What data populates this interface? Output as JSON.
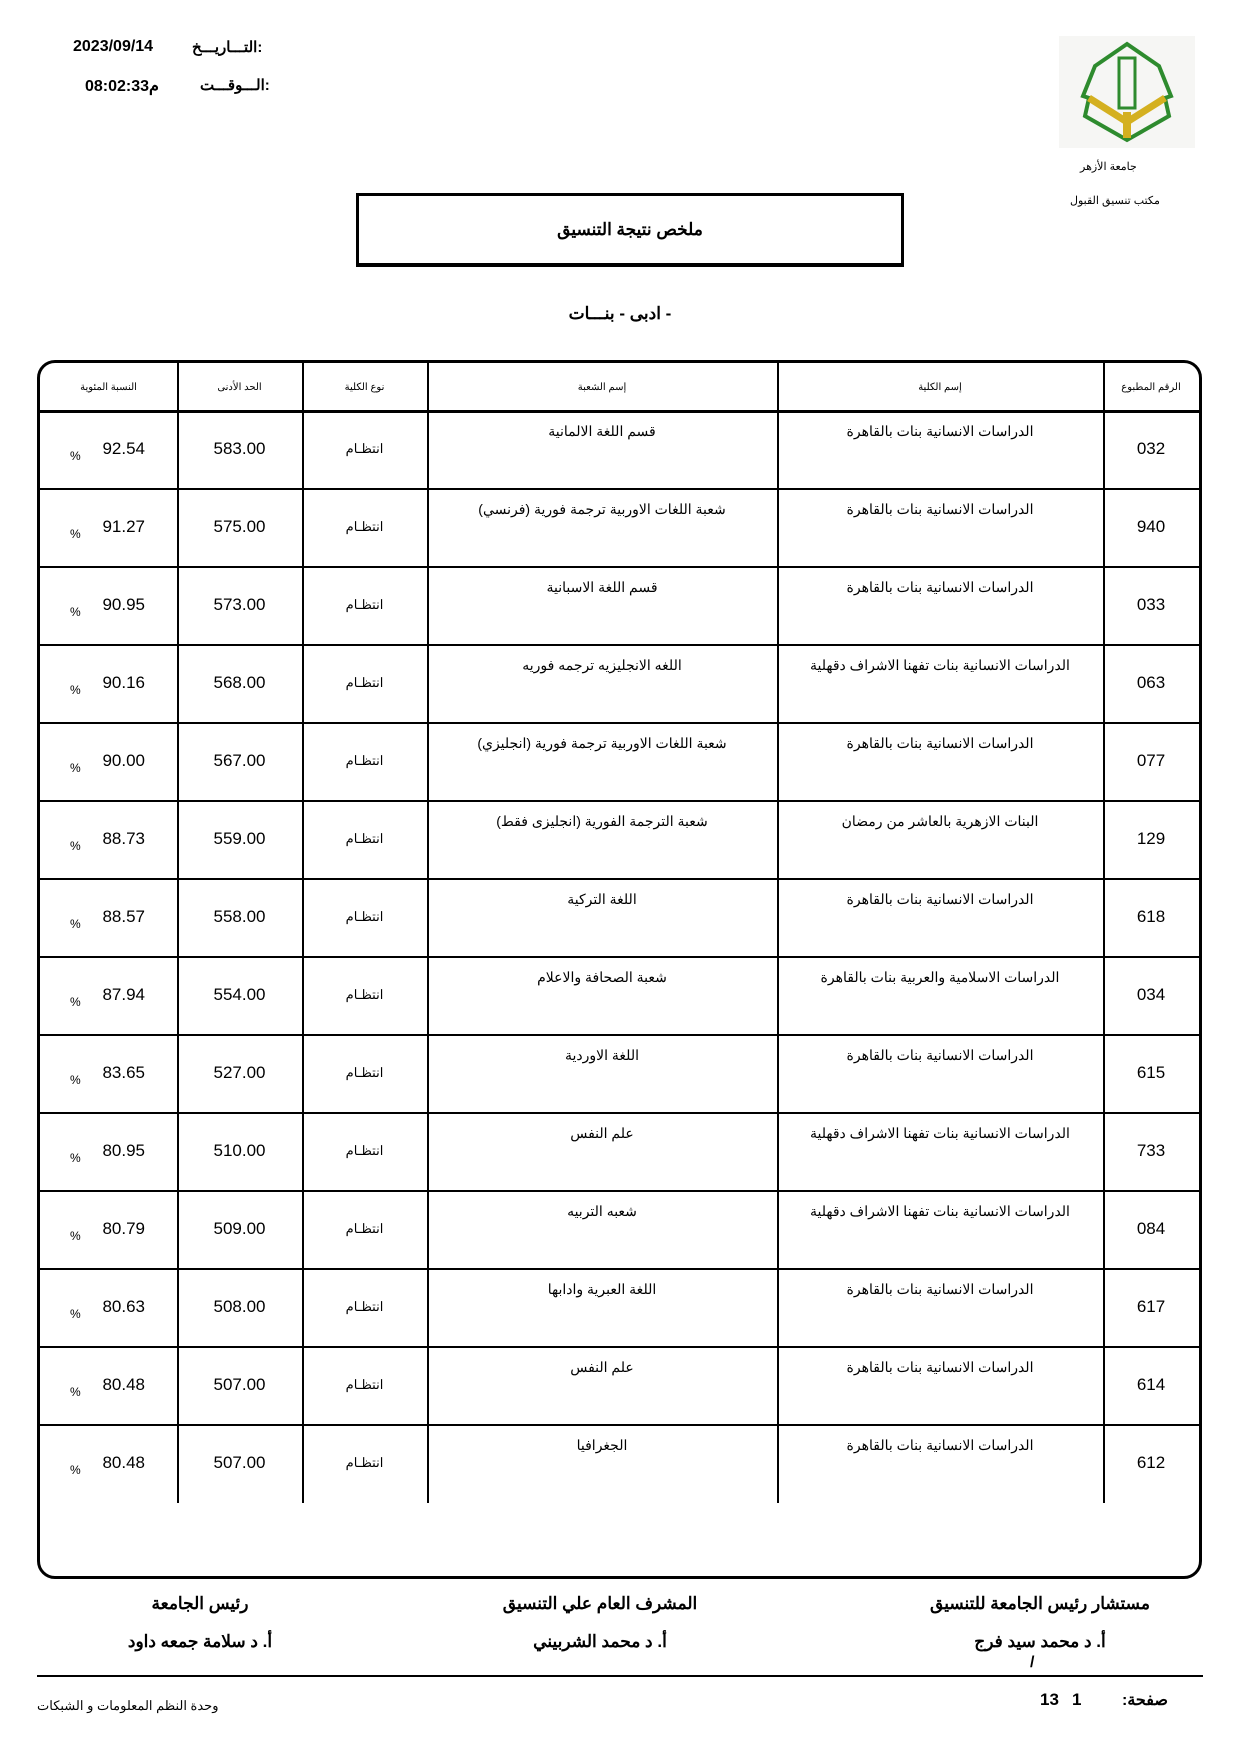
{
  "header": {
    "date_label": "التـــاريـــخ:",
    "date_value": "2023/09/14",
    "time_label": "الـــوقـــت:",
    "time_value": "08:02:33م",
    "university": "جامعة الأزهر",
    "office": "مكتب تنسيق القبول",
    "logo_text": "جامعة الأزهر",
    "logo_colors": {
      "green": "#2e8b2e",
      "gold": "#d4b020"
    }
  },
  "title": "ملخص نتيجة التنسيق",
  "subtitle": "- ادبى - بنـــات",
  "table": {
    "columns": [
      "الرقم المطبوع",
      "إسم الكلية",
      "إسم الشعبة",
      "نوع الكلية",
      "الحد الأدنى",
      "النسبة المئوية"
    ],
    "percent_sign": "%",
    "rows": [
      {
        "code": "032",
        "college": "الدراسات الانسانية بنات بالقاهرة",
        "branch": "قسم اللغة الالمانية",
        "type": "انتظـام",
        "min": "583.00",
        "pct": "92.54"
      },
      {
        "code": "940",
        "college": "الدراسات الانسانية بنات بالقاهرة",
        "branch": "شعبة اللغات الاوربية  ترجمة فورية (فرنسي)",
        "type": "انتظـام",
        "min": "575.00",
        "pct": "91.27"
      },
      {
        "code": "033",
        "college": "الدراسات الانسانية بنات بالقاهرة",
        "branch": "قسم اللغة الاسبانية",
        "type": "انتظـام",
        "min": "573.00",
        "pct": "90.95"
      },
      {
        "code": "063",
        "college": "الدراسات الانسانية بنات تفهنا الاشراف دقهلية",
        "branch": "اللغه الانجليزيه ترجمه فوريه",
        "type": "انتظـام",
        "min": "568.00",
        "pct": "90.16"
      },
      {
        "code": "077",
        "college": "الدراسات الانسانية بنات بالقاهرة",
        "branch": "شعبة اللغات الاوربية  ترجمة فورية (انجليزي)",
        "type": "انتظـام",
        "min": "567.00",
        "pct": "90.00"
      },
      {
        "code": "129",
        "college": "البنات الازهرية بالعاشر من رمضان",
        "branch": "شعبة الترجمة الفورية (انجليزى فقط)",
        "type": "انتظـام",
        "min": "559.00",
        "pct": "88.73"
      },
      {
        "code": "618",
        "college": "الدراسات الانسانية بنات بالقاهرة",
        "branch": "اللغة التركية",
        "type": "انتظـام",
        "min": "558.00",
        "pct": "88.57"
      },
      {
        "code": "034",
        "college": "الدراسات الاسلامية والعربية بنات بالقاهرة",
        "branch": "شعبة الصحافة والاعلام",
        "type": "انتظـام",
        "min": "554.00",
        "pct": "87.94"
      },
      {
        "code": "615",
        "college": "الدراسات الانسانية بنات بالقاهرة",
        "branch": "اللغة الاوردية",
        "type": "انتظـام",
        "min": "527.00",
        "pct": "83.65"
      },
      {
        "code": "733",
        "college": "الدراسات الانسانية بنات تفهنا الاشراف دقهلية",
        "branch": "علم النفس",
        "type": "انتظـام",
        "min": "510.00",
        "pct": "80.95"
      },
      {
        "code": "084",
        "college": "الدراسات الانسانية بنات تفهنا الاشراف دقهلية",
        "branch": "شعبه التربيه",
        "type": "انتظـام",
        "min": "509.00",
        "pct": "80.79"
      },
      {
        "code": "617",
        "college": "الدراسات الانسانية بنات بالقاهرة",
        "branch": "اللغة العبرية وادابها",
        "type": "انتظـام",
        "min": "508.00",
        "pct": "80.63"
      },
      {
        "code": "614",
        "college": "الدراسات الانسانية بنات بالقاهرة",
        "branch": "علم النفس",
        "type": "انتظـام",
        "min": "507.00",
        "pct": "80.48"
      },
      {
        "code": "612",
        "college": "الدراسات الانسانية بنات بالقاهرة",
        "branch": "الجغرافيا",
        "type": "انتظـام",
        "min": "507.00",
        "pct": "80.48"
      }
    ]
  },
  "signatures": [
    {
      "title": "مستشار رئيس الجامعة للتنسيق",
      "name": "أ. د محمد سيد فرج"
    },
    {
      "title": "المشرف العام علي التنسيق",
      "name": "أ. د محمد الشربيني"
    },
    {
      "title": "رئيس الجامعة",
      "name": "أ. د سلامة جمعه داود"
    }
  ],
  "slash": "/",
  "footer": {
    "page_label": "صفحة:",
    "page_current": "1",
    "page_total": "13",
    "unit": "وحدة النظم المعلومات و الشبكات"
  }
}
